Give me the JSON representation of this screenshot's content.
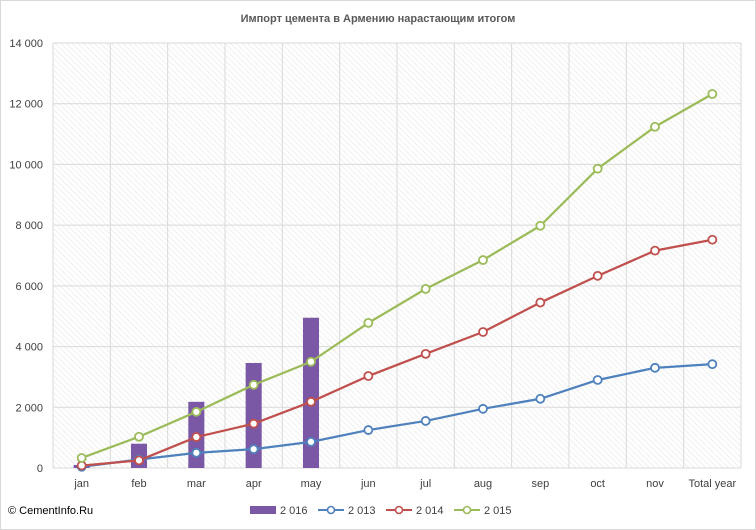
{
  "chart_data": {
    "type": "bar+line",
    "title": "Импорт цемента в Армению нарастающим  итогом",
    "categories": [
      "jan",
      "feb",
      "mar",
      "apr",
      "may",
      "jun",
      "jul",
      "aug",
      "sep",
      "oct",
      "nov",
      "Total year"
    ],
    "y_ticks": [
      0,
      2000,
      4000,
      6000,
      8000,
      10000,
      12000,
      14000
    ],
    "y_tick_labels": [
      "0",
      "2 000",
      "4 000",
      "6 000",
      "8 000",
      "10 000",
      "12 000",
      "14 000"
    ],
    "ylim": [
      0,
      14000
    ],
    "grid": true,
    "legend_position": "bottom",
    "bar_series": [
      {
        "name": "2 016",
        "color": "#7a58a6",
        "values": [
          100,
          800,
          2180,
          3460,
          4950
        ]
      }
    ],
    "line_series": [
      {
        "name": "2 013",
        "color": "#4f81bd",
        "values": [
          40,
          280,
          500,
          620,
          860,
          1250,
          1550,
          1950,
          2280,
          2900,
          3300,
          3420
        ]
      },
      {
        "name": "2 014",
        "color": "#c0504d",
        "values": [
          80,
          250,
          1020,
          1460,
          2180,
          3030,
          3760,
          4480,
          5450,
          6330,
          7160,
          7520
        ]
      },
      {
        "name": "2 015",
        "color": "#9bbb59",
        "values": [
          330,
          1030,
          1850,
          2740,
          3500,
          4780,
          5900,
          6850,
          7980,
          9860,
          11240,
          12320
        ]
      }
    ]
  },
  "source": "© CementInfo.Ru"
}
